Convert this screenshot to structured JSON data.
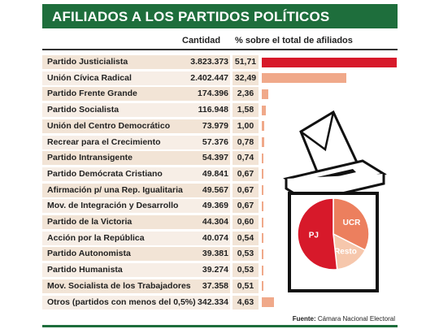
{
  "title": "AFILIADOS A LOS PARTIDOS POLÍTICOS",
  "headers": {
    "quantity": "Cantidad",
    "percent": "% sobre el total de afiliados"
  },
  "source_label": "Fuente:",
  "source_text": "Cámara Nacional Electoral",
  "colors": {
    "header_green": "#1e6e3c",
    "bar_top": "#d7192a",
    "bar_other": "#f0a98a",
    "row_bg": "#f2e4d6"
  },
  "chart_data": [
    {
      "type": "bar",
      "orientation": "horizontal",
      "title": "AFILIADOS A LOS PARTIDOS POLÍTICOS",
      "categories": [
        "Partido Justicialista",
        "Unión Cívica Radical",
        "Partido Frente Grande",
        "Partido Socialista",
        "Unión del Centro Democrático",
        "Recrear para el Crecimiento",
        "Partido Intransigente",
        "Partido Demócrata Cristiano",
        "Afirmación p/ una Rep. Igualitaria",
        "Mov. de Integración y Desarrollo",
        "Partido de la Victoria",
        "Acción por la República",
        "Partido Autonomista",
        "Partido Humanista",
        "Mov. Socialista de los Trabajadores",
        "Otros (partidos con menos del 0,5%)"
      ],
      "quantity_labels": [
        "3.823.373",
        "2.402.447",
        "174.396",
        "116.948",
        "73.979",
        "57.376",
        "54.397",
        "49.841",
        "49.567",
        "49.369",
        "44.304",
        "40.074",
        "39.381",
        "39.274",
        "37.358",
        "342.334"
      ],
      "percent_labels": [
        "51,71",
        "32,49",
        "2,36",
        "1,58",
        "1,00",
        "0,78",
        "0,74",
        "0,67",
        "0,67",
        "0,67",
        "0,60",
        "0,54",
        "0,53",
        "0,53",
        "0,51",
        "4,63"
      ],
      "values": [
        51.71,
        32.49,
        2.36,
        1.58,
        1.0,
        0.78,
        0.74,
        0.67,
        0.67,
        0.67,
        0.6,
        0.54,
        0.53,
        0.53,
        0.51,
        4.63
      ]
    },
    {
      "type": "pie",
      "categories": [
        "PJ",
        "UCR",
        "Resto"
      ],
      "values": [
        51.71,
        32.49,
        15.8
      ]
    }
  ]
}
